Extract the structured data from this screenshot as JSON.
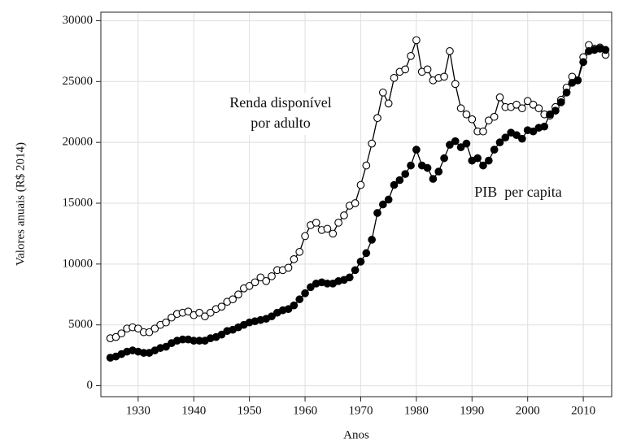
{
  "chart_data": {
    "type": "line",
    "xlabel": "Anos",
    "ylabel": "Valores anuais (R$ 2014)",
    "annotations": [
      "Renda disponível",
      "por adulto",
      "PIB  per capita"
    ],
    "x": [
      1925,
      1926,
      1927,
      1928,
      1929,
      1930,
      1931,
      1932,
      1933,
      1934,
      1935,
      1936,
      1937,
      1938,
      1939,
      1940,
      1941,
      1942,
      1943,
      1944,
      1945,
      1946,
      1947,
      1948,
      1949,
      1950,
      1951,
      1952,
      1953,
      1954,
      1955,
      1956,
      1957,
      1958,
      1959,
      1960,
      1961,
      1962,
      1963,
      1964,
      1965,
      1966,
      1967,
      1968,
      1969,
      1970,
      1971,
      1972,
      1973,
      1974,
      1975,
      1976,
      1977,
      1978,
      1979,
      1980,
      1981,
      1982,
      1983,
      1984,
      1985,
      1986,
      1987,
      1988,
      1989,
      1990,
      1991,
      1992,
      1993,
      1994,
      1995,
      1996,
      1997,
      1998,
      1999,
      2000,
      2001,
      2002,
      2003,
      2004,
      2005,
      2006,
      2007,
      2008,
      2009,
      2010,
      2011,
      2012,
      2013,
      2014
    ],
    "series": [
      {
        "color": "#000000",
        "marker_fill": "#ffffff",
        "values": [
          3900,
          4000,
          4300,
          4700,
          4800,
          4700,
          4400,
          4400,
          4700,
          5000,
          5200,
          5600,
          5900,
          6000,
          6100,
          5800,
          6000,
          5700,
          6000,
          6300,
          6500,
          6900,
          7100,
          7500,
          8000,
          8200,
          8500,
          8900,
          8600,
          9000,
          9500,
          9500,
          9700,
          10400,
          11000,
          12300,
          13200,
          13400,
          12800,
          12900,
          12500,
          13400,
          14000,
          14800,
          15000,
          16500,
          18100,
          19900,
          22000,
          24100,
          23200,
          25300,
          25800,
          26000,
          27100,
          28400,
          25800,
          26000,
          25100,
          25300,
          25400,
          27500,
          24800,
          22800,
          22300,
          21900,
          20900,
          20900,
          21800,
          22100,
          23700,
          22900,
          22900,
          23100,
          22800,
          23400,
          23100,
          22800,
          22300,
          22200,
          22900,
          23500,
          24500,
          25400,
          25100,
          27000,
          28000,
          27700,
          27800,
          27200
        ]
      },
      {
        "color": "#000000",
        "marker_fill": "#000000",
        "values": [
          2300,
          2400,
          2600,
          2800,
          2900,
          2800,
          2700,
          2700,
          2900,
          3100,
          3200,
          3500,
          3700,
          3800,
          3800,
          3700,
          3700,
          3700,
          3900,
          4000,
          4200,
          4500,
          4600,
          4800,
          5000,
          5200,
          5300,
          5400,
          5500,
          5700,
          6000,
          6200,
          6300,
          6600,
          7100,
          7600,
          8100,
          8400,
          8500,
          8400,
          8400,
          8600,
          8700,
          8900,
          9500,
          10200,
          10900,
          12000,
          14200,
          14900,
          15300,
          16500,
          16900,
          17400,
          18100,
          19400,
          18100,
          17900,
          17000,
          17600,
          18700,
          19800,
          20100,
          19600,
          19900,
          18500,
          18700,
          18100,
          18500,
          19400,
          20000,
          20400,
          20800,
          20600,
          20300,
          21000,
          20900,
          21200,
          21300,
          22300,
          22600,
          23300,
          24100,
          24900,
          25100,
          26600,
          27500,
          27600,
          27700,
          27600
        ]
      }
    ],
    "xlim": [
      1923.3,
      2015.1
    ],
    "ylim": [
      -900,
      30700
    ],
    "xticks": [
      1930,
      1940,
      1950,
      1960,
      1970,
      1980,
      1990,
      2000,
      2010
    ],
    "yticks": [
      0,
      5000,
      10000,
      15000,
      20000,
      25000,
      30000
    ],
    "grid": true
  }
}
